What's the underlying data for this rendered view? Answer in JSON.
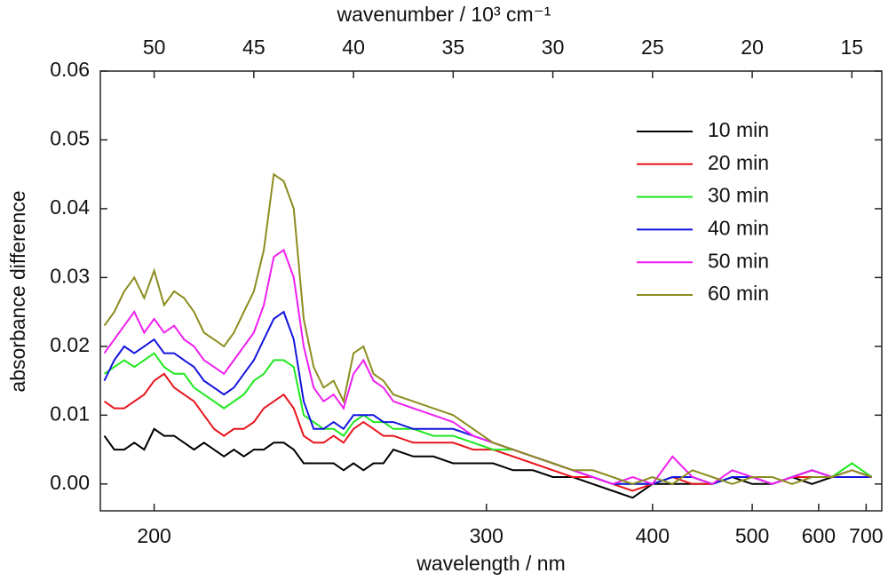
{
  "chart_data": {
    "type": "line",
    "xlabel": "wavenumber / 10³ cm⁻¹",
    "ylabel": "absorbance difference",
    "x2label": "wavelength / nm",
    "x2scale": "reciprocal",
    "xlim": [
      52.7,
      13.5
    ],
    "xticks": [
      50,
      45,
      40,
      35,
      30,
      25,
      20,
      15
    ],
    "x2ticks": [
      200,
      300,
      400,
      500,
      600,
      700
    ],
    "ylim": [
      -0.0039,
      0.06
    ],
    "yticks": [
      {
        "value": 0,
        "label": "0.00"
      },
      0.01,
      0.02,
      0.03,
      0.04,
      0.05,
      0.06
    ],
    "legend": "upper right",
    "x": [
      52.5,
      52,
      51.5,
      51,
      50.5,
      50,
      49.5,
      49,
      48.5,
      48,
      47.5,
      47,
      46.5,
      46,
      45.5,
      45,
      44.5,
      44,
      43.5,
      43,
      42.5,
      42,
      41.5,
      41,
      40.5,
      40,
      39.5,
      39,
      38.5,
      38,
      37,
      36,
      35,
      34,
      33,
      32,
      31,
      30,
      29,
      28,
      27,
      26,
      25,
      24,
      23,
      22,
      21,
      20,
      19,
      18,
      17,
      16,
      15,
      14
    ],
    "series": [
      {
        "name": "10 min",
        "color": "#000000",
        "values": [
          0.007,
          0.005,
          0.005,
          0.006,
          0.005,
          0.008,
          0.007,
          0.007,
          0.006,
          0.005,
          0.006,
          0.005,
          0.004,
          0.005,
          0.004,
          0.005,
          0.005,
          0.006,
          0.006,
          0.005,
          0.003,
          0.003,
          0.003,
          0.003,
          0.002,
          0.003,
          0.002,
          0.003,
          0.003,
          0.005,
          0.004,
          0.004,
          0.003,
          0.003,
          0.003,
          0.002,
          0.002,
          0.001,
          0.001,
          0.0,
          -0.001,
          -0.002,
          0.0,
          0.0,
          0.0,
          0.0,
          0.001,
          0.0,
          0.0,
          0.001,
          0.0,
          0.001,
          0.001,
          0.001
        ]
      },
      {
        "name": "20 min",
        "color": "#e8141c",
        "values": [
          0.012,
          0.011,
          0.011,
          0.012,
          0.013,
          0.015,
          0.016,
          0.014,
          0.013,
          0.012,
          0.01,
          0.008,
          0.007,
          0.008,
          0.008,
          0.009,
          0.011,
          0.012,
          0.013,
          0.011,
          0.007,
          0.006,
          0.006,
          0.007,
          0.006,
          0.008,
          0.009,
          0.008,
          0.007,
          0.007,
          0.006,
          0.006,
          0.006,
          0.005,
          0.005,
          0.004,
          0.003,
          0.002,
          0.001,
          0.001,
          0.0,
          -0.001,
          0.0,
          0.001,
          0.0,
          0.0,
          0.001,
          0.001,
          0.0,
          0.001,
          0.001,
          0.001,
          0.001,
          0.001
        ]
      },
      {
        "name": "30 min",
        "color": "#1ee81e",
        "values": [
          0.016,
          0.017,
          0.018,
          0.017,
          0.018,
          0.019,
          0.017,
          0.016,
          0.016,
          0.014,
          0.013,
          0.012,
          0.011,
          0.012,
          0.013,
          0.015,
          0.016,
          0.018,
          0.018,
          0.017,
          0.01,
          0.009,
          0.008,
          0.008,
          0.007,
          0.009,
          0.01,
          0.009,
          0.009,
          0.008,
          0.008,
          0.007,
          0.007,
          0.006,
          0.005,
          0.005,
          0.004,
          0.003,
          0.002,
          0.001,
          0.0,
          0.0,
          0.0,
          0.001,
          0.001,
          0.0,
          0.001,
          0.001,
          0.0,
          0.001,
          0.002,
          0.001,
          0.003,
          0.001
        ]
      },
      {
        "name": "40 min",
        "color": "#1414e0",
        "values": [
          0.015,
          0.018,
          0.02,
          0.019,
          0.02,
          0.021,
          0.019,
          0.019,
          0.018,
          0.017,
          0.015,
          0.014,
          0.013,
          0.014,
          0.016,
          0.018,
          0.021,
          0.024,
          0.025,
          0.021,
          0.012,
          0.008,
          0.008,
          0.009,
          0.008,
          0.01,
          0.01,
          0.01,
          0.009,
          0.009,
          0.008,
          0.008,
          0.008,
          0.007,
          0.006,
          0.005,
          0.004,
          0.003,
          0.002,
          0.001,
          0.0,
          0.0,
          0.0,
          0.001,
          0.001,
          0.0,
          0.001,
          0.001,
          0.0,
          0.001,
          0.002,
          0.001,
          0.001,
          0.001
        ]
      },
      {
        "name": "50 min",
        "color": "#f01ef0",
        "values": [
          0.019,
          0.021,
          0.023,
          0.025,
          0.022,
          0.024,
          0.022,
          0.023,
          0.021,
          0.02,
          0.018,
          0.017,
          0.016,
          0.018,
          0.02,
          0.022,
          0.026,
          0.033,
          0.034,
          0.03,
          0.02,
          0.014,
          0.012,
          0.013,
          0.011,
          0.016,
          0.018,
          0.015,
          0.014,
          0.012,
          0.011,
          0.01,
          0.009,
          0.007,
          0.006,
          0.005,
          0.004,
          0.003,
          0.002,
          0.001,
          0.0,
          0.001,
          0.0,
          0.004,
          0.001,
          0.0,
          0.002,
          0.001,
          0.0,
          0.001,
          0.002,
          0.001,
          0.002,
          0.001
        ]
      },
      {
        "name": "60 min",
        "color": "#8c8c1e",
        "values": [
          0.023,
          0.025,
          0.028,
          0.03,
          0.027,
          0.031,
          0.026,
          0.028,
          0.027,
          0.025,
          0.022,
          0.021,
          0.02,
          0.022,
          0.025,
          0.028,
          0.034,
          0.045,
          0.044,
          0.04,
          0.024,
          0.017,
          0.014,
          0.015,
          0.012,
          0.019,
          0.02,
          0.016,
          0.015,
          0.013,
          0.012,
          0.011,
          0.01,
          0.008,
          0.006,
          0.005,
          0.004,
          0.003,
          0.002,
          0.002,
          0.001,
          0.0,
          0.001,
          0.0,
          0.002,
          0.001,
          0.0,
          0.001,
          0.001,
          0.0,
          0.001,
          0.001,
          0.002,
          0.001
        ]
      }
    ]
  }
}
